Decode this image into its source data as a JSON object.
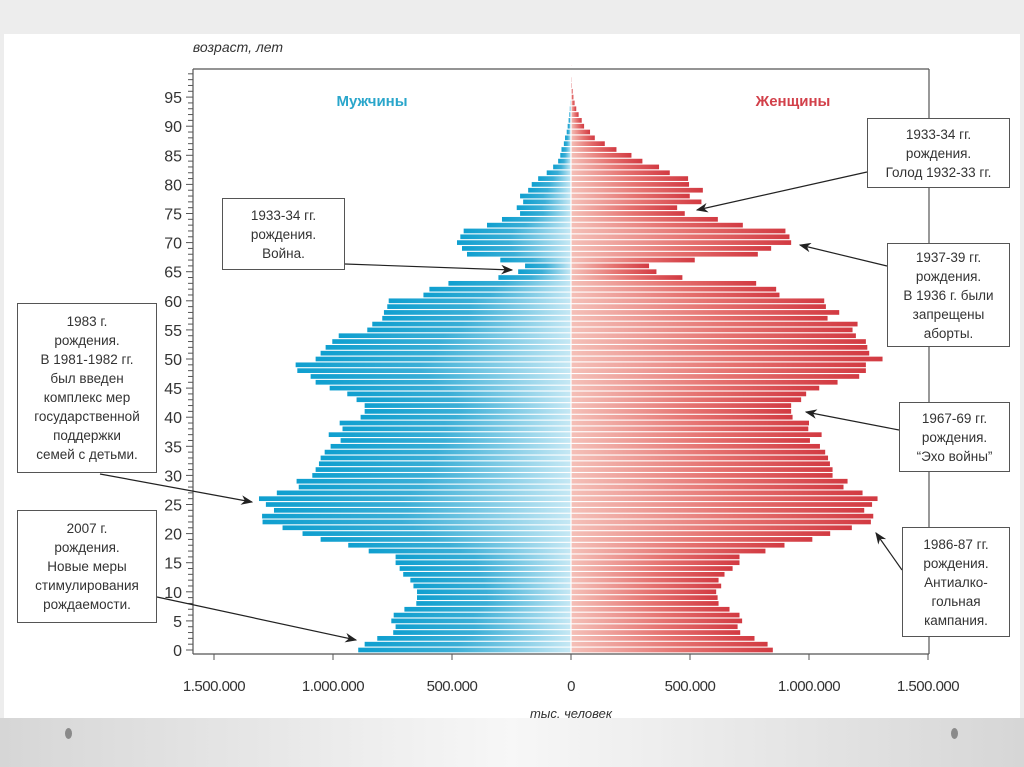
{
  "chart_data": {
    "type": "bar",
    "subtype": "population-pyramid",
    "ylabel": "возраст, лет",
    "xlabel": "тыс. человек",
    "ages": {
      "from": 0,
      "to": 100
    },
    "yticks": [
      "0",
      "5",
      "10",
      "15",
      "20",
      "25",
      "30",
      "35",
      "40",
      "45",
      "50",
      "55",
      "60",
      "65",
      "70",
      "75",
      "80",
      "85",
      "90",
      "95"
    ],
    "xticks": [
      {
        "label": "1.500.000",
        "value": -1500000
      },
      {
        "label": "1.000.000",
        "value": -1000000
      },
      {
        "label": "500.000",
        "value": -500000
      },
      {
        "label": "0",
        "value": 0
      },
      {
        "label": "500.000",
        "value": 500000
      },
      {
        "label": "1.000.000",
        "value": 1000000
      },
      {
        "label": "1.500.000",
        "value": 1500000
      }
    ],
    "xlim": [
      -1500000,
      1500000
    ],
    "value_multiplier": 1000,
    "series": [
      {
        "name": "Мужчины",
        "color": "#1ea5d0",
        "side": "left",
        "values": [
          894,
          867,
          814,
          747,
          737,
          755,
          745,
          700,
          650,
          647,
          647,
          662,
          675,
          705,
          720,
          737,
          737,
          850,
          936,
          1052,
          1128,
          1212,
          1296,
          1298,
          1248,
          1282,
          1311,
          1236,
          1144,
          1153,
          1087,
          1073,
          1059,
          1052,
          1035,
          1010,
          968,
          1018,
          960,
          972,
          884,
          867,
          867,
          901,
          940,
          1014,
          1073,
          1094,
          1150,
          1157,
          1073,
          1052,
          1031,
          1003,
          976,
          856,
          835,
          793,
          786,
          772,
          766,
          620,
          595,
          515,
          305,
          222,
          193,
          297,
          437,
          458,
          479,
          465,
          451,
          353,
          290,
          214,
          228,
          201,
          214,
          180,
          165,
          138,
          102,
          75,
          54,
          45,
          40,
          30,
          25,
          18,
          14,
          10,
          7,
          5,
          3,
          2,
          1,
          1,
          1,
          0,
          0
        ]
      },
      {
        "name": "Женщины",
        "color": "#d6454b",
        "side": "right",
        "values": [
          848,
          826,
          771,
          711,
          700,
          719,
          708,
          666,
          620,
          616,
          610,
          631,
          620,
          645,
          679,
          708,
          708,
          817,
          897,
          1014,
          1089,
          1180,
          1260,
          1270,
          1232,
          1265,
          1288,
          1225,
          1145,
          1162,
          1099,
          1099,
          1088,
          1080,
          1068,
          1046,
          1004,
          1053,
          997,
          1000,
          931,
          925,
          925,
          967,
          988,
          1043,
          1120,
          1211,
          1239,
          1239,
          1309,
          1253,
          1245,
          1239,
          1197,
          1183,
          1204,
          1078,
          1127,
          1071,
          1064,
          876,
          862,
          778,
          468,
          359,
          328,
          520,
          785,
          841,
          925,
          918,
          901,
          722,
          617,
          478,
          446,
          548,
          499,
          554,
          496,
          492,
          415,
          370,
          300,
          254,
          191,
          142,
          100,
          80,
          55,
          45,
          32,
          22,
          15,
          10,
          7,
          4,
          3,
          2,
          1
        ]
      }
    ],
    "annotations": [
      {
        "id": "war",
        "lines": [
          "1933-34 гг.",
          "рождения.",
          "Война."
        ],
        "points_to_age": 65,
        "side": "men"
      },
      {
        "id": "famine",
        "lines": [
          "1933-34 гг.",
          "рождения.",
          "Голод 1932-33 гг."
        ],
        "points_to_age": 76,
        "side": "women"
      },
      {
        "id": "abortion-ban",
        "lines": [
          "1937-39 гг.",
          "рождения.",
          "В 1936 г. были",
          "запрещены",
          "аборты."
        ],
        "points_to_age": 70,
        "side": "women"
      },
      {
        "id": "war-echo",
        "lines": [
          "1967-69 гг.",
          "рождения.",
          "“Эхо войны”"
        ],
        "points_to_age": 41,
        "side": "women"
      },
      {
        "id": "anti-alcohol",
        "lines": [
          "1986-87 гг.",
          "рождения.",
          "Антиалко-",
          "гольная",
          "кампания."
        ],
        "points_to_age": 20,
        "side": "women"
      },
      {
        "id": "family-support",
        "lines": [
          "1983 г.",
          "рождения.",
          "В 1981-1982 гг.",
          "был введен",
          "комплекс мер",
          "государственной",
          "поддержки",
          "семей с детьми."
        ],
        "points_to_age": 26,
        "side": "men"
      },
      {
        "id": "birth-stimulus",
        "lines": [
          "2007 г.",
          "рождения.",
          "Новые меры",
          "стимулирования",
          "рождаемости."
        ],
        "points_to_age": 2,
        "side": "men"
      }
    ]
  }
}
